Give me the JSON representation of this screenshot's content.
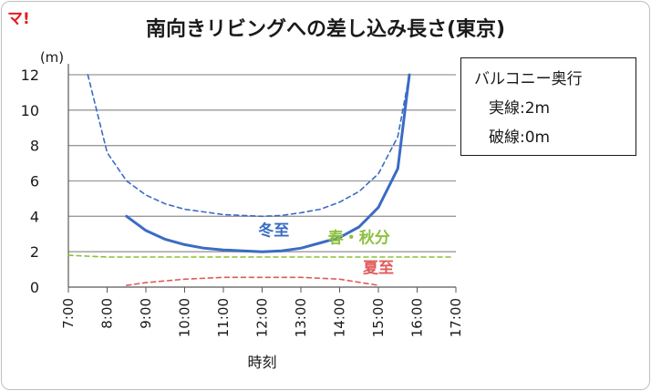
{
  "logo_text": "マ!",
  "title": "南向きリビングへの差し込み長さ(東京)",
  "legend": {
    "title": "バルコニー奥行",
    "line1": "実線:2m",
    "line2": "破線:0m"
  },
  "colors": {
    "winter": "#3a6cc4",
    "equinox": "#8dbf3f",
    "summer": "#e05a5a",
    "grid": "#999999",
    "axis": "#595959"
  },
  "chart_data": {
    "type": "line",
    "title": "南向きリビングへの差し込み長さ(東京)",
    "xlabel": "時刻",
    "ylabel": "(m)",
    "xlim": [
      7,
      17
    ],
    "ylim": [
      0,
      12
    ],
    "x_ticks": [
      "7:00",
      "8:00",
      "9:00",
      "10:00",
      "11:00",
      "12:00",
      "13:00",
      "14:00",
      "15:00",
      "16:00",
      "17:00"
    ],
    "y_ticks": [
      "0",
      "2",
      "4",
      "6",
      "8",
      "10",
      "12"
    ],
    "grid": true,
    "series": [
      {
        "name": "冬至",
        "style": "solid",
        "color": "#3a6cc4",
        "x": [
          8.5,
          9.0,
          9.5,
          10.0,
          10.5,
          11.0,
          11.5,
          12.0,
          12.5,
          13.0,
          13.5,
          14.0,
          14.5,
          15.0,
          15.5,
          15.8
        ],
        "y": [
          4.0,
          3.2,
          2.7,
          2.4,
          2.2,
          2.1,
          2.05,
          2.0,
          2.05,
          2.2,
          2.5,
          2.8,
          3.4,
          4.5,
          6.7,
          12.0
        ]
      },
      {
        "name": "",
        "style": "dashed",
        "color": "#3a6cc4",
        "x": [
          7.5,
          8.0,
          8.5,
          9.0,
          9.5,
          10.0,
          10.5,
          11.0,
          11.5,
          12.0,
          12.5,
          13.0,
          13.5,
          14.0,
          14.5,
          15.0,
          15.5,
          15.8
        ],
        "y": [
          12.0,
          7.6,
          6.0,
          5.2,
          4.7,
          4.4,
          4.25,
          4.1,
          4.05,
          4.0,
          4.05,
          4.2,
          4.4,
          4.8,
          5.4,
          6.4,
          8.5,
          12.0
        ]
      },
      {
        "name": "春・秋分",
        "style": "dashed",
        "color": "#8dbf3f",
        "x": [
          7.0,
          8.0,
          9.0,
          10.0,
          11.0,
          12.0,
          13.0,
          14.0,
          15.0,
          16.0,
          16.9
        ],
        "y": [
          1.8,
          1.7,
          1.7,
          1.7,
          1.7,
          1.7,
          1.7,
          1.7,
          1.7,
          1.7,
          1.7
        ]
      },
      {
        "name": "夏至",
        "style": "dashed",
        "color": "#e05a5a",
        "x": [
          8.5,
          9.0,
          10.0,
          11.0,
          12.0,
          13.0,
          14.0,
          15.0
        ],
        "y": [
          0.1,
          0.25,
          0.45,
          0.55,
          0.55,
          0.55,
          0.45,
          0.1
        ]
      }
    ],
    "annotations": [
      {
        "text": "冬至",
        "x": 12.3,
        "y": 2.9,
        "color": "#3a6cc4"
      },
      {
        "text": "春・秋分",
        "x": 14.5,
        "y": 2.5,
        "color": "#8dbf3f"
      },
      {
        "text": "夏至",
        "x": 15.0,
        "y": 0.8,
        "color": "#e05a5a"
      }
    ]
  }
}
